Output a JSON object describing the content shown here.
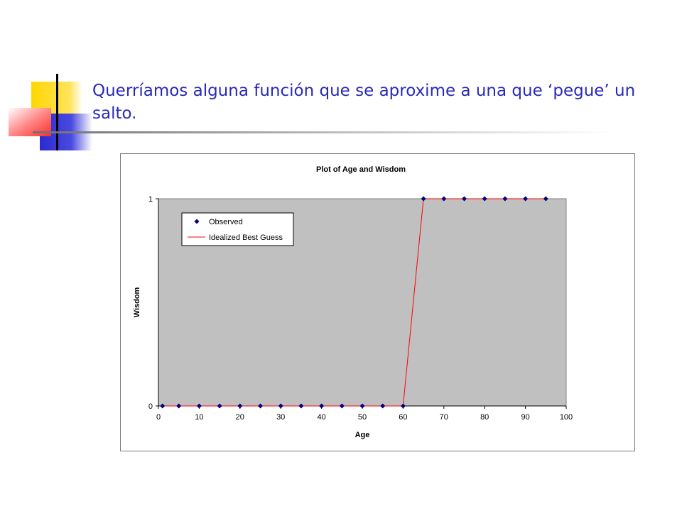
{
  "slide": {
    "title": "Querríamos alguna función que se aproxime a una que ‘pegue’ un salto."
  },
  "colors": {
    "title_text": "#2a2ab8",
    "plot_background": "#c0c0c0",
    "observed_marker": "#000080",
    "best_guess_line": "#ff0000"
  },
  "chart_data": {
    "type": "scatter",
    "title": "Plot of Age and Wisdom",
    "xlabel": "Age",
    "ylabel": "Wisdom",
    "xlim": [
      0,
      100
    ],
    "ylim": [
      0,
      1
    ],
    "x_ticks": [
      0,
      10,
      20,
      30,
      40,
      50,
      60,
      70,
      80,
      90,
      100
    ],
    "y_ticks": [
      0,
      1
    ],
    "grid": false,
    "legend_position": "top-left",
    "series": [
      {
        "name": "Observed",
        "kind": "markers",
        "marker": "diamond",
        "x": [
          1,
          5,
          10,
          15,
          20,
          25,
          30,
          35,
          40,
          45,
          50,
          55,
          60,
          65,
          70,
          75,
          80,
          85,
          90,
          95
        ],
        "y": [
          0,
          0,
          0,
          0,
          0,
          0,
          0,
          0,
          0,
          0,
          0,
          0,
          0,
          1,
          1,
          1,
          1,
          1,
          1,
          1
        ]
      },
      {
        "name": "Idealized Best Guess",
        "kind": "line",
        "x": [
          1,
          5,
          10,
          15,
          20,
          25,
          30,
          35,
          40,
          45,
          50,
          55,
          60,
          65,
          70,
          75,
          80,
          85,
          90,
          95
        ],
        "y": [
          0,
          0,
          0,
          0,
          0,
          0,
          0,
          0,
          0,
          0,
          0,
          0,
          0,
          1,
          1,
          1,
          1,
          1,
          1,
          1
        ]
      }
    ]
  }
}
